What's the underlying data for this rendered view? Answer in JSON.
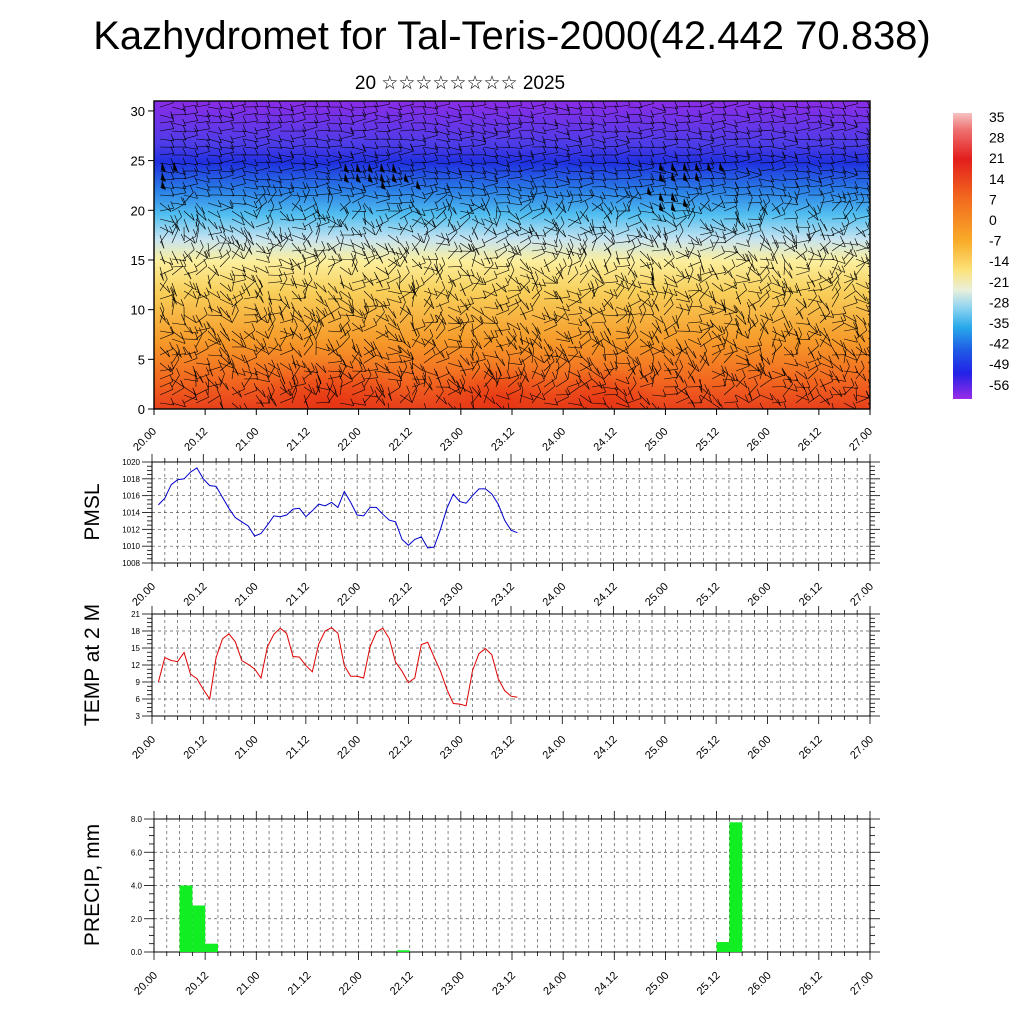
{
  "title": "Kazhydromet for Tal-Teris-2000(42.442 70.838)",
  "subtitle": "20 ☆☆☆☆☆☆☆☆ 2025",
  "colorbar": {
    "labels": [
      "35",
      "28",
      "21",
      "14",
      "7",
      "0",
      "-7",
      "-14",
      "-21",
      "-28",
      "-35",
      "-42",
      "-49",
      "-56"
    ],
    "colors": {
      "violet": "#8a2be2",
      "blue": "#1f2ef0",
      "cyan": "#29b6ea",
      "paleblue": "#c8e6f2",
      "yellow": "#fbea8c",
      "orange": "#f9a625",
      "red": "#e8341c",
      "pink": "#f2b1b1"
    }
  },
  "chart_data": [
    {
      "type": "heatmap",
      "name": "temperature-wind-profile",
      "x_tick_labels": [
        "20.00",
        "20.12",
        "21.00",
        "21.12",
        "22.00",
        "22.12",
        "23.00",
        "23.12",
        "24.00",
        "24.12",
        "25.00",
        "25.12",
        "26.00",
        "26.12",
        "27.00"
      ],
      "y_tick_labels": [
        "0",
        "5",
        "10",
        "15",
        "20",
        "25",
        "30"
      ],
      "ylim": [
        0,
        31
      ],
      "zlim": [
        -56,
        35
      ]
    },
    {
      "type": "line",
      "ylabel": "PMSL",
      "color": "#0000cc",
      "ylim": [
        1008,
        1020
      ],
      "y_tick_labels": [
        "1020",
        "1018",
        "1016",
        "1014",
        "1012",
        "1010",
        "1008"
      ],
      "x_tick_labels": [
        "20.00",
        "20.12",
        "21.00",
        "21.12",
        "22.00",
        "22.12",
        "23.00",
        "23.12",
        "24.00",
        "24.12",
        "25.00",
        "25.12",
        "26.00",
        "26.12",
        "27.00"
      ],
      "values": [
        1014.9,
        1015.7,
        1017.3,
        1017.9,
        1018.0,
        1018.8,
        1019.3,
        1018.0,
        1017.2,
        1017.1,
        1015.8,
        1014.5,
        1013.4,
        1012.9,
        1012.4,
        1011.2,
        1011.5,
        1012.5,
        1013.6,
        1013.5,
        1013.7,
        1014.4,
        1014.5,
        1013.5,
        1014.2,
        1015.0,
        1014.8,
        1015.2,
        1014.6,
        1016.5,
        1015.2,
        1013.7,
        1013.6,
        1014.6,
        1014.6,
        1013.8,
        1013.1,
        1012.9,
        1010.8,
        1010.1,
        1010.8,
        1011.1,
        1009.8,
        1009.9,
        1012.0,
        1014.5,
        1016.2,
        1015.3,
        1015.1,
        1016.0,
        1016.8,
        1016.8,
        1016.2,
        1015.0,
        1013.1,
        1011.9,
        1011.6
      ]
    },
    {
      "type": "line",
      "ylabel": "TEMP at 2 M",
      "color": "#dd0000",
      "ylim": [
        3,
        21
      ],
      "y_tick_labels": [
        "21",
        "18",
        "15",
        "12",
        "9",
        "6",
        "3"
      ],
      "x_tick_labels": [
        "20.00",
        "20.12",
        "21.00",
        "21.12",
        "22.00",
        "22.12",
        "23.00",
        "23.12",
        "24.00",
        "24.12",
        "25.00",
        "25.12",
        "26.00",
        "26.12",
        "27.00"
      ],
      "values": [
        9.0,
        13.3,
        12.8,
        12.6,
        14.2,
        10.4,
        9.6,
        7.7,
        6.0,
        13.3,
        16.6,
        17.5,
        16.1,
        12.8,
        12.1,
        11.3,
        9.7,
        15.2,
        17.4,
        18.5,
        17.6,
        13.5,
        13.4,
        11.9,
        10.8,
        15.7,
        18.0,
        18.6,
        17.6,
        11.9,
        10.0,
        10.0,
        9.7,
        15.2,
        17.8,
        18.5,
        16.7,
        12.5,
        10.9,
        8.9,
        9.7,
        15.6,
        16.0,
        13.4,
        10.9,
        7.7,
        5.2,
        5.1,
        4.8,
        11.0,
        14.0,
        14.9,
        13.8,
        9.6,
        7.5,
        6.5,
        6.3
      ]
    },
    {
      "type": "bar",
      "ylabel": "PRECIP, mm",
      "color": "#11ee22",
      "ylim": [
        0,
        8.0
      ],
      "y_tick_labels": [
        "8.0",
        "6.0",
        "4.0",
        "2.0",
        "0.0"
      ],
      "x_tick_labels": [
        "20.00",
        "20.12",
        "21.00",
        "21.12",
        "22.00",
        "22.12",
        "23.00",
        "23.12",
        "24.00",
        "24.12",
        "25.00",
        "25.12",
        "26.00",
        "26.12",
        "27.00"
      ],
      "bars": [
        {
          "slot": 2,
          "value": 4.0
        },
        {
          "slot": 3,
          "value": 2.8
        },
        {
          "slot": 4,
          "value": 0.5
        },
        {
          "slot": 19,
          "value": 0.1
        },
        {
          "slot": 44,
          "value": 0.6
        },
        {
          "slot": 45,
          "value": 7.8
        }
      ]
    }
  ]
}
